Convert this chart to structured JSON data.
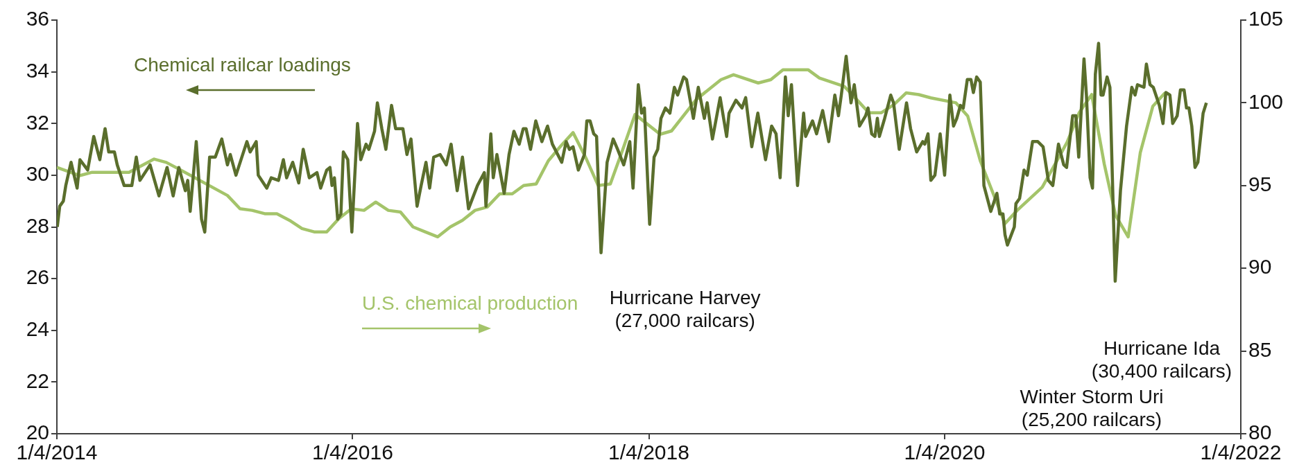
{
  "chart_data": {
    "type": "line",
    "xlim": [
      "2014-01-04",
      "2022-01-04"
    ],
    "xticks": [
      {
        "value": "2014-01-04",
        "label": "1/4/2014"
      },
      {
        "value": "2016-01-04",
        "label": "1/4/2016"
      },
      {
        "value": "2018-01-04",
        "label": "1/4/2018"
      },
      {
        "value": "2020-01-04",
        "label": "1/4/2020"
      },
      {
        "value": "2022-01-04",
        "label": "1/4/2022"
      }
    ],
    "ylim": [
      20,
      36
    ],
    "yticks": [
      20,
      22,
      24,
      26,
      28,
      30,
      32,
      34,
      36
    ],
    "y2lim": [
      80,
      105
    ],
    "y2ticks": [
      80,
      85,
      90,
      95,
      100,
      105
    ],
    "grid": false,
    "legend": false,
    "series": [
      {
        "name": "Chemical railcar loadings",
        "color": "#5a6e2c",
        "axis": "y",
        "x": [
          "2014-01-05",
          "2014-01-11",
          "2014-01-20",
          "2014-01-26",
          "2014-02-08",
          "2014-02-23",
          "2014-03-02",
          "2014-03-21",
          "2014-04-05",
          "2014-04-20",
          "2014-05-03",
          "2014-05-12",
          "2014-05-26",
          "2014-06-02",
          "2014-06-19",
          "2014-07-08",
          "2014-07-19",
          "2014-07-28",
          "2014-08-22",
          "2014-09-13",
          "2014-10-03",
          "2014-10-18",
          "2014-11-01",
          "2014-11-17",
          "2014-11-23",
          "2014-11-29",
          "2014-12-14",
          "2014-12-27",
          "2015-01-04",
          "2015-01-16",
          "2015-01-30",
          "2015-02-15",
          "2015-03-01",
          "2015-03-08",
          "2015-03-22",
          "2015-04-18",
          "2015-04-26",
          "2015-05-11",
          "2015-05-16",
          "2015-06-06",
          "2015-06-17",
          "2015-07-05",
          "2015-07-17",
          "2015-07-25",
          "2015-08-09",
          "2015-08-24",
          "2015-09-04",
          "2015-09-19",
          "2015-10-08",
          "2015-10-17",
          "2015-11-01",
          "2015-11-09",
          "2015-11-14",
          "2015-11-20",
          "2015-11-28",
          "2015-12-06",
          "2015-12-12",
          "2015-12-23",
          "2016-01-02",
          "2016-01-16",
          "2016-01-24",
          "2016-02-06",
          "2016-02-13",
          "2016-02-27",
          "2016-03-05",
          "2016-03-16",
          "2016-03-26",
          "2016-04-09",
          "2016-04-19",
          "2016-05-07",
          "2016-05-17",
          "2016-05-27",
          "2016-06-11",
          "2016-06-21",
          "2016-07-03",
          "2016-07-12",
          "2016-07-22",
          "2016-08-07",
          "2016-08-22",
          "2016-09-03",
          "2016-09-18",
          "2016-10-01",
          "2016-10-16",
          "2016-11-07",
          "2016-11-24",
          "2016-11-28",
          "2016-12-10",
          "2016-12-16",
          "2016-12-25",
          "2017-01-12",
          "2017-01-24",
          "2017-02-05",
          "2017-02-18",
          "2017-02-28",
          "2017-03-07",
          "2017-03-18",
          "2017-03-31",
          "2017-04-15",
          "2017-04-29",
          "2017-05-11",
          "2017-06-03",
          "2017-06-14",
          "2017-06-22",
          "2017-07-01",
          "2017-07-14",
          "2017-07-29",
          "2017-08-04",
          "2017-08-12",
          "2017-08-21",
          "2017-08-28",
          "2017-09-08",
          "2017-09-23",
          "2017-10-08",
          "2017-10-19",
          "2017-11-03",
          "2017-11-18",
          "2017-11-26",
          "2017-12-09",
          "2017-12-17",
          "2017-12-24",
          "2018-01-06",
          "2018-01-17",
          "2018-01-26",
          "2018-02-03",
          "2018-02-14",
          "2018-02-25",
          "2018-03-08",
          "2018-03-16",
          "2018-03-31",
          "2018-04-07",
          "2018-04-24",
          "2018-05-06",
          "2018-05-21",
          "2018-05-28",
          "2018-06-10",
          "2018-06-29",
          "2018-07-15",
          "2018-07-21",
          "2018-08-07",
          "2018-08-22",
          "2018-08-31",
          "2018-09-15",
          "2018-09-30",
          "2018-10-19",
          "2018-11-03",
          "2018-11-14",
          "2018-11-24",
          "2018-12-07",
          "2018-12-14",
          "2018-12-22",
          "2019-01-06",
          "2019-01-21",
          "2019-01-26",
          "2019-02-12",
          "2019-02-22",
          "2019-03-09",
          "2019-03-24",
          "2019-04-08",
          "2019-04-17",
          "2019-04-24",
          "2019-05-06",
          "2019-05-18",
          "2019-05-26",
          "2019-06-08",
          "2019-06-23",
          "2019-06-29",
          "2019-07-08",
          "2019-07-16",
          "2019-07-22",
          "2019-07-27",
          "2019-08-09",
          "2019-08-24",
          "2019-08-31",
          "2019-09-14",
          "2019-10-02",
          "2019-10-12",
          "2019-10-27",
          "2019-11-11",
          "2019-11-16",
          "2019-11-24",
          "2019-12-01",
          "2019-12-11",
          "2019-12-24",
          "2020-01-04",
          "2020-01-17",
          "2020-01-26",
          "2020-02-03",
          "2020-02-12",
          "2020-02-19",
          "2020-02-29",
          "2020-03-09",
          "2020-03-15",
          "2020-03-23",
          "2020-04-01",
          "2020-04-10",
          "2020-04-27",
          "2020-05-12",
          "2020-05-19",
          "2020-05-27",
          "2020-06-01",
          "2020-06-07",
          "2020-06-24",
          "2020-06-28",
          "2020-07-07",
          "2020-07-18",
          "2020-07-26",
          "2020-08-08",
          "2020-08-21",
          "2020-09-03",
          "2020-09-16",
          "2020-09-27",
          "2020-10-11",
          "2020-10-24",
          "2020-10-31",
          "2020-11-15",
          "2020-11-23",
          "2020-11-30",
          "2020-12-13",
          "2020-12-19",
          "2020-12-28",
          "2021-01-03",
          "2021-01-10",
          "2021-01-18",
          "2021-01-24",
          "2021-01-29",
          "2021-02-08",
          "2021-02-15",
          "2021-02-28",
          "2021-03-13",
          "2021-03-28",
          "2021-04-10",
          "2021-04-18",
          "2021-04-24",
          "2021-05-10",
          "2021-05-16",
          "2021-05-25",
          "2021-06-02",
          "2021-06-17",
          "2021-06-26",
          "2021-07-03",
          "2021-07-13",
          "2021-07-20",
          "2021-07-31",
          "2021-08-08",
          "2021-08-17",
          "2021-08-23",
          "2021-08-29",
          "2021-09-05",
          "2021-09-13",
          "2021-09-20",
          "2021-10-03",
          "2021-10-11"
        ],
        "values": [
          28.0,
          28.8,
          29.0,
          29.6,
          30.5,
          29.5,
          30.6,
          30.2,
          31.5,
          30.6,
          31.8,
          30.9,
          30.9,
          30.4,
          29.6,
          29.6,
          30.7,
          29.8,
          30.4,
          29.2,
          30.3,
          29.2,
          30.3,
          29.4,
          29.8,
          28.6,
          31.3,
          28.3,
          27.8,
          30.7,
          30.7,
          31.4,
          30.4,
          30.8,
          30.0,
          31.3,
          30.9,
          31.3,
          30.0,
          29.5,
          29.9,
          29.8,
          30.6,
          29.9,
          30.5,
          29.7,
          31.0,
          29.9,
          30.1,
          29.5,
          30.2,
          30.3,
          29.6,
          29.9,
          28.3,
          28.5,
          30.9,
          30.6,
          27.8,
          32.0,
          30.6,
          31.2,
          31.0,
          31.7,
          32.8,
          31.8,
          31.0,
          32.7,
          31.8,
          31.8,
          30.8,
          31.4,
          28.8,
          29.6,
          30.5,
          29.5,
          30.7,
          30.8,
          30.4,
          31.2,
          29.4,
          30.7,
          28.7,
          29.6,
          30.1,
          28.8,
          31.6,
          29.9,
          30.8,
          29.3,
          30.8,
          31.7,
          31.2,
          31.8,
          31.8,
          31.0,
          32.1,
          31.3,
          31.9,
          31.2,
          30.5,
          31.3,
          31.0,
          31.1,
          30.2,
          30.8,
          32.1,
          32.1,
          31.6,
          31.5,
          27.0,
          30.5,
          31.4,
          31.0,
          30.4,
          31.3,
          29.5,
          33.5,
          32.4,
          32.6,
          28.1,
          30.7,
          31.0,
          32.2,
          32.6,
          32.4,
          33.4,
          33.1,
          33.8,
          33.7,
          32.2,
          33.4,
          32.2,
          32.8,
          31.4,
          33.0,
          31.5,
          32.4,
          32.9,
          32.6,
          33.0,
          31.1,
          32.4,
          30.6,
          31.9,
          31.6,
          29.9,
          33.8,
          32.3,
          33.5,
          29.6,
          32.4,
          31.5,
          32.1,
          31.6,
          32.5,
          31.3,
          33.1,
          32.3,
          33.1,
          34.6,
          32.8,
          33.5,
          31.9,
          32.3,
          32.6,
          31.6,
          31.5,
          32.2,
          31.5,
          32.2,
          33.1,
          32.8,
          31.0,
          32.8,
          31.8,
          30.9,
          31.3,
          31.2,
          31.6,
          29.8,
          30.0,
          31.6,
          30.0,
          33.1,
          31.9,
          32.2,
          32.7,
          32.6,
          33.7,
          33.7,
          33.2,
          33.8,
          33.6,
          29.6,
          28.6,
          29.3,
          28.5,
          28.5,
          27.7,
          27.3,
          28.0,
          28.9,
          29.1,
          30.2,
          30.0,
          31.3,
          31.3,
          31.1,
          29.8,
          29.6,
          31.2,
          30.4,
          30.3,
          32.3,
          32.3,
          30.7,
          34.5,
          33.1,
          29.9,
          29.5,
          33.9,
          35.1,
          33.1,
          33.1,
          33.8,
          33.4,
          25.9,
          29.4,
          31.9,
          33.4,
          33.1,
          33.5,
          33.4,
          34.3,
          33.5,
          33.4,
          32.7,
          32.0,
          33.2,
          33.1,
          32.0,
          32.3,
          33.3,
          33.3,
          32.6,
          32.6,
          31.9,
          30.3,
          30.5,
          32.4,
          32.8
        ]
      },
      {
        "name": "U.S. chemical production",
        "color": "#a4c46a",
        "axis": "y2",
        "x": [
          "2014-01-04",
          "2014-03",
          "2014-04",
          "2014-05",
          "2014-07",
          "2014-09",
          "2014-10",
          "2014-11",
          "2015-03",
          "2015-04",
          "2015-05",
          "2015-06",
          "2015-07",
          "2015-08",
          "2015-09",
          "2015-10",
          "2015-11",
          "2015-12",
          "2016-01",
          "2016-02",
          "2016-03",
          "2016-04",
          "2016-05",
          "2016-06",
          "2016-07",
          "2016-08",
          "2016-09",
          "2016-10",
          "2016-11",
          "2016-12",
          "2017-01",
          "2017-02",
          "2017-03",
          "2017-04",
          "2017-05",
          "2017-06",
          "2017-07",
          "2017-08",
          "2017-09",
          "2017-10",
          "2017-11",
          "2017-12",
          "2018-02",
          "2018-03",
          "2018-05",
          "2018-07",
          "2018-08",
          "2018-10",
          "2018-11",
          "2018-12",
          "2019-01",
          "2019-02",
          "2019-03",
          "2019-05",
          "2019-06",
          "2019-07",
          "2019-08",
          "2019-09",
          "2019-10",
          "2019-11",
          "2019-12",
          "2020-02",
          "2020-03",
          "2020-04",
          "2020-06",
          "2020-07",
          "2020-09",
          "2020-11",
          "2020-12",
          "2021-01",
          "2021-02",
          "2021-03",
          "2021-04",
          "2021-05",
          "2021-06",
          "2021-07"
        ],
        "values": [
          96.1,
          95.6,
          95.8,
          95.8,
          95.8,
          96.6,
          96.4,
          96.0,
          94.4,
          93.6,
          93.5,
          93.3,
          93.3,
          92.9,
          92.4,
          92.2,
          92.2,
          93.0,
          93.6,
          93.5,
          94.0,
          93.5,
          93.4,
          92.5,
          92.2,
          91.9,
          92.5,
          92.9,
          93.5,
          93.7,
          94.5,
          94.5,
          95.0,
          95.1,
          96.5,
          97.4,
          98.2,
          96.7,
          95.0,
          95.1,
          97.2,
          99.3,
          98.1,
          98.3,
          100.2,
          101.4,
          101.7,
          101.2,
          101.4,
          102.0,
          102.0,
          102.0,
          101.5,
          101.0,
          100.2,
          99.4,
          99.4,
          99.9,
          100.6,
          100.5,
          100.3,
          100.0,
          99.2,
          96.5,
          92.7,
          93.5,
          94.9,
          97.6,
          99.4,
          100.5,
          96.3,
          93.2,
          91.9,
          97.0,
          99.8,
          100.6
        ]
      }
    ],
    "annotations": [
      {
        "text": "Hurricane Harvey\n(27,000 railcars)",
        "x": "2017-09-08",
        "y": 27.0
      },
      "Hurricane Ida\n(30,400 railcars)",
      "Winter Storm Uri\n(25,200 railcars)"
    ]
  }
}
